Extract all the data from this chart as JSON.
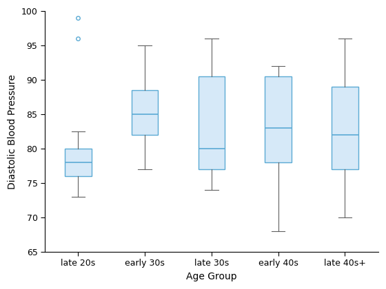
{
  "title": "",
  "xlabel": "Age Group",
  "ylabel": "Diastolic Blood Pressure",
  "categories": [
    "late 20s",
    "early 30s",
    "late 30s",
    "early 40s",
    "late 40s+"
  ],
  "ylim": [
    65,
    100
  ],
  "yticks": [
    65,
    70,
    75,
    80,
    85,
    90,
    95,
    100
  ],
  "box_face_color": "#d6e9f8",
  "box_edge_color": "#5baad4",
  "median_color": "#5baad4",
  "whisker_color": "#606060",
  "cap_color": "#606060",
  "flier_edge_color": "#5baad4",
  "spine_color": "#000000",
  "tick_color": "#000000",
  "label_color": "#000000",
  "boxes": [
    {
      "q1": 76.0,
      "median": 78.0,
      "q3": 80.0,
      "whislo": 73.0,
      "whishi": 82.5,
      "fliers": [
        96.0,
        99.0
      ]
    },
    {
      "q1": 82.0,
      "median": 85.0,
      "q3": 88.5,
      "whislo": 77.0,
      "whishi": 95.0,
      "fliers": []
    },
    {
      "q1": 77.0,
      "median": 80.0,
      "q3": 90.5,
      "whislo": 74.0,
      "whishi": 96.0,
      "fliers": []
    },
    {
      "q1": 78.0,
      "median": 83.0,
      "q3": 90.5,
      "whislo": 68.0,
      "whishi": 92.0,
      "fliers": []
    },
    {
      "q1": 77.0,
      "median": 82.0,
      "q3": 89.0,
      "whislo": 70.0,
      "whishi": 96.0,
      "fliers": []
    }
  ],
  "figsize": [
    5.6,
    4.2
  ],
  "dpi": 100,
  "box_width": 0.4,
  "xlabel_fontsize": 10,
  "ylabel_fontsize": 10,
  "tick_fontsize": 9
}
